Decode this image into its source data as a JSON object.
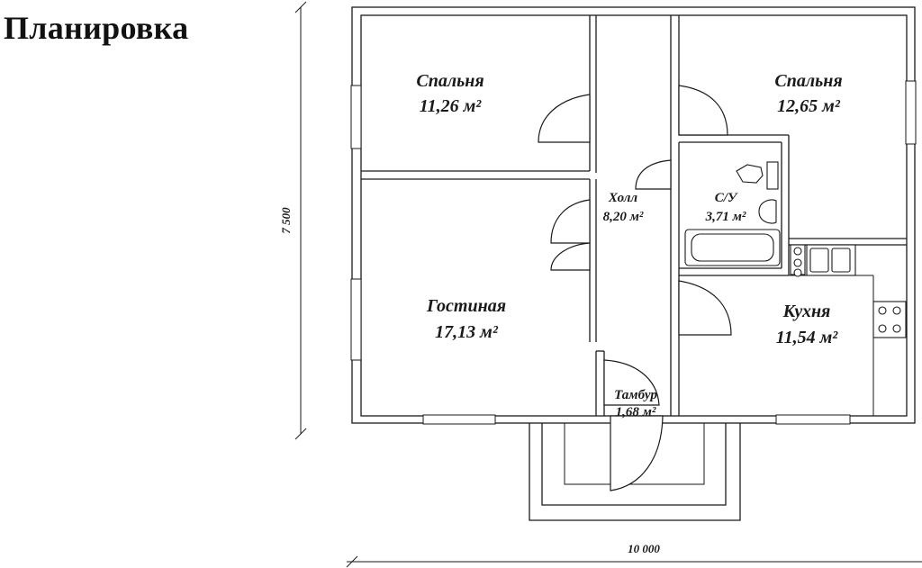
{
  "title": "Планировка",
  "dimensions": {
    "height": "7 500",
    "width": "10 000"
  },
  "rooms": [
    {
      "id": "bedroom1",
      "name": "Спальня",
      "area": "11,26 м²"
    },
    {
      "id": "bedroom2",
      "name": "Спальня",
      "area": "12,65 м²"
    },
    {
      "id": "hall",
      "name": "Холл",
      "area": "8,20 м²"
    },
    {
      "id": "bathroom",
      "name": "С/У",
      "area": "3,71 м²"
    },
    {
      "id": "living",
      "name": "Гостиная",
      "area": "17,13 м²"
    },
    {
      "id": "kitchen",
      "name": "Кухня",
      "area": "11,54 м²"
    },
    {
      "id": "vestibule",
      "name": "Тамбур",
      "area": "1,68 м²"
    }
  ]
}
